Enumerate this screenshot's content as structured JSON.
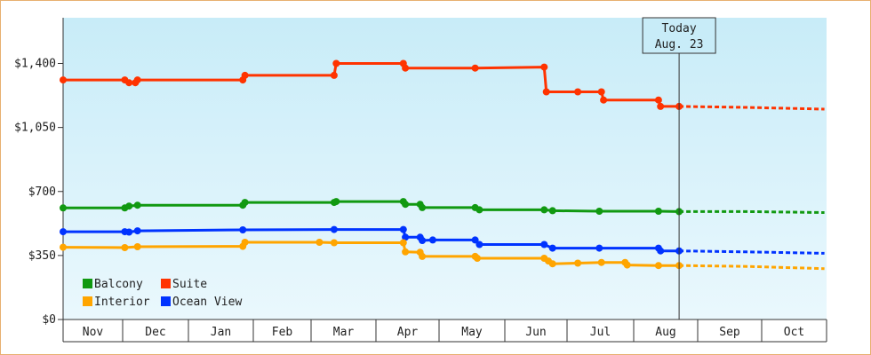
{
  "chart_data": {
    "type": "line",
    "x_axis": {
      "months": [
        "Nov",
        "Dec",
        "Jan",
        "Feb",
        "Mar",
        "Apr",
        "May",
        "Jun",
        "Jul",
        "Aug",
        "Sep",
        "Oct"
      ]
    },
    "y_axis": {
      "ylim": [
        0,
        1650
      ],
      "ticks": [
        0,
        350,
        700,
        1050,
        1400
      ],
      "tick_labels": [
        "$0",
        "$350",
        "$700",
        "$1,050",
        "$1,400"
      ]
    },
    "today_marker": {
      "line1": "Today",
      "line2": "Aug. 23",
      "x": "2024-08-23"
    },
    "legend": {
      "placement": "bottom-left",
      "entries": [
        {
          "name": "Balcony",
          "color": "#119911"
        },
        {
          "name": "Suite",
          "color": "#ff3300"
        },
        {
          "name": "Interior",
          "color": "#ffa500"
        },
        {
          "name": "Ocean View",
          "color": "#0033ff"
        }
      ]
    },
    "series": [
      {
        "name": "Suite",
        "color": "#ff3300",
        "points": [
          [
            "2023-11-01",
            1310
          ],
          [
            "2023-12-02",
            1310
          ],
          [
            "2023-12-04",
            1295
          ],
          [
            "2023-12-07",
            1295
          ],
          [
            "2023-12-08",
            1310
          ],
          [
            "2024-01-27",
            1310
          ],
          [
            "2024-01-28",
            1335
          ],
          [
            "2024-03-12",
            1335
          ],
          [
            "2024-03-13",
            1400
          ],
          [
            "2024-04-14",
            1400
          ],
          [
            "2024-04-15",
            1375
          ],
          [
            "2024-05-18",
            1375
          ],
          [
            "2024-06-20",
            1380
          ],
          [
            "2024-06-21",
            1245
          ],
          [
            "2024-07-06",
            1245
          ],
          [
            "2024-07-17",
            1245
          ],
          [
            "2024-07-18",
            1200
          ],
          [
            "2024-08-13",
            1200
          ],
          [
            "2024-08-14",
            1165
          ],
          [
            "2024-08-23",
            1165
          ]
        ],
        "forecast": [
          [
            "2024-08-23",
            1165
          ],
          [
            "2024-09-24",
            1160
          ],
          [
            "2024-10-31",
            1150
          ]
        ]
      },
      {
        "name": "Balcony",
        "color": "#119911",
        "points": [
          [
            "2023-11-01",
            610
          ],
          [
            "2023-12-02",
            610
          ],
          [
            "2023-12-04",
            620
          ],
          [
            "2023-12-08",
            625
          ],
          [
            "2024-01-27",
            625
          ],
          [
            "2024-01-28",
            640
          ],
          [
            "2024-03-12",
            640
          ],
          [
            "2024-03-13",
            645
          ],
          [
            "2024-04-14",
            645
          ],
          [
            "2024-04-15",
            630
          ],
          [
            "2024-04-22",
            630
          ],
          [
            "2024-04-23",
            612
          ],
          [
            "2024-05-18",
            612
          ],
          [
            "2024-05-20",
            600
          ],
          [
            "2024-06-20",
            600
          ],
          [
            "2024-06-24",
            595
          ],
          [
            "2024-07-16",
            592
          ],
          [
            "2024-08-13",
            592
          ],
          [
            "2024-08-23",
            590
          ]
        ],
        "forecast": [
          [
            "2024-08-23",
            590
          ],
          [
            "2024-09-24",
            590
          ],
          [
            "2024-10-31",
            585
          ]
        ]
      },
      {
        "name": "Ocean View",
        "color": "#0033ff",
        "points": [
          [
            "2023-11-01",
            480
          ],
          [
            "2023-12-02",
            480
          ],
          [
            "2023-12-04",
            478
          ],
          [
            "2023-12-08",
            485
          ],
          [
            "2024-01-27",
            490
          ],
          [
            "2024-03-12",
            492
          ],
          [
            "2024-04-14",
            492
          ],
          [
            "2024-04-15",
            450
          ],
          [
            "2024-04-22",
            450
          ],
          [
            "2024-04-23",
            432
          ],
          [
            "2024-04-28",
            435
          ],
          [
            "2024-05-18",
            435
          ],
          [
            "2024-05-20",
            410
          ],
          [
            "2024-06-20",
            410
          ],
          [
            "2024-06-24",
            390
          ],
          [
            "2024-07-16",
            390
          ],
          [
            "2024-08-13",
            390
          ],
          [
            "2024-08-14",
            375
          ],
          [
            "2024-08-23",
            375
          ]
        ],
        "forecast": [
          [
            "2024-08-23",
            375
          ],
          [
            "2024-09-24",
            370
          ],
          [
            "2024-10-31",
            362
          ]
        ]
      },
      {
        "name": "Interior",
        "color": "#ffa500",
        "points": [
          [
            "2023-11-01",
            395
          ],
          [
            "2023-12-02",
            393
          ],
          [
            "2023-12-08",
            398
          ],
          [
            "2024-01-27",
            400
          ],
          [
            "2024-01-28",
            422
          ],
          [
            "2024-03-05",
            422
          ],
          [
            "2024-03-12",
            420
          ],
          [
            "2024-04-14",
            420
          ],
          [
            "2024-04-15",
            370
          ],
          [
            "2024-04-22",
            368
          ],
          [
            "2024-04-23",
            345
          ],
          [
            "2024-05-18",
            345
          ],
          [
            "2024-05-19",
            335
          ],
          [
            "2024-06-20",
            335
          ],
          [
            "2024-06-22",
            320
          ],
          [
            "2024-06-24",
            305
          ],
          [
            "2024-07-06",
            308
          ],
          [
            "2024-07-17",
            312
          ],
          [
            "2024-07-28",
            312
          ],
          [
            "2024-07-29",
            298
          ],
          [
            "2024-08-13",
            295
          ],
          [
            "2024-08-23",
            295
          ]
        ],
        "forecast": [
          [
            "2024-08-23",
            295
          ],
          [
            "2024-09-24",
            290
          ],
          [
            "2024-10-31",
            278
          ]
        ]
      }
    ]
  }
}
